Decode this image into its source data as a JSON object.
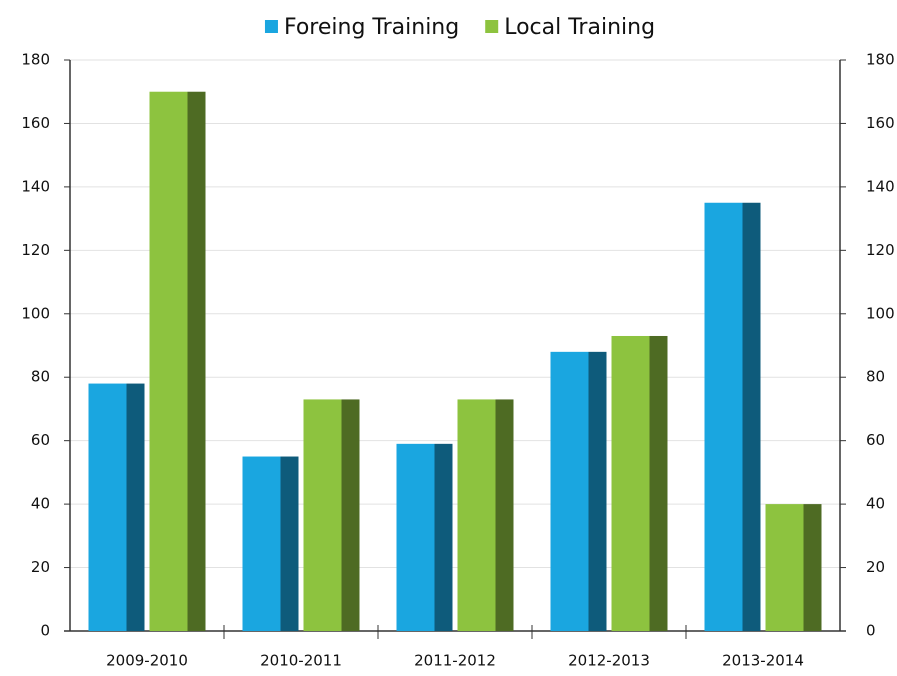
{
  "chart_data": {
    "type": "bar",
    "categories": [
      "2009-2010",
      "2010-2011",
      "2011-2012",
      "2012-2013",
      "2013-2014"
    ],
    "series": [
      {
        "name": "Foreing Training",
        "color": "#1aa6e0",
        "values": [
          78,
          55,
          59,
          88,
          135
        ]
      },
      {
        "name": "Local Training",
        "color": "#8dc33f",
        "values": [
          170,
          73,
          73,
          93,
          40
        ]
      }
    ],
    "ylim": [
      0,
      180
    ],
    "yticks": [
      0,
      20,
      40,
      60,
      80,
      100,
      120,
      140,
      160,
      180
    ],
    "y2lim": [
      0,
      180
    ],
    "y2ticks": [
      0,
      20,
      40,
      60,
      80,
      100,
      120,
      140,
      160,
      180
    ],
    "grid": true,
    "legend": "top"
  }
}
